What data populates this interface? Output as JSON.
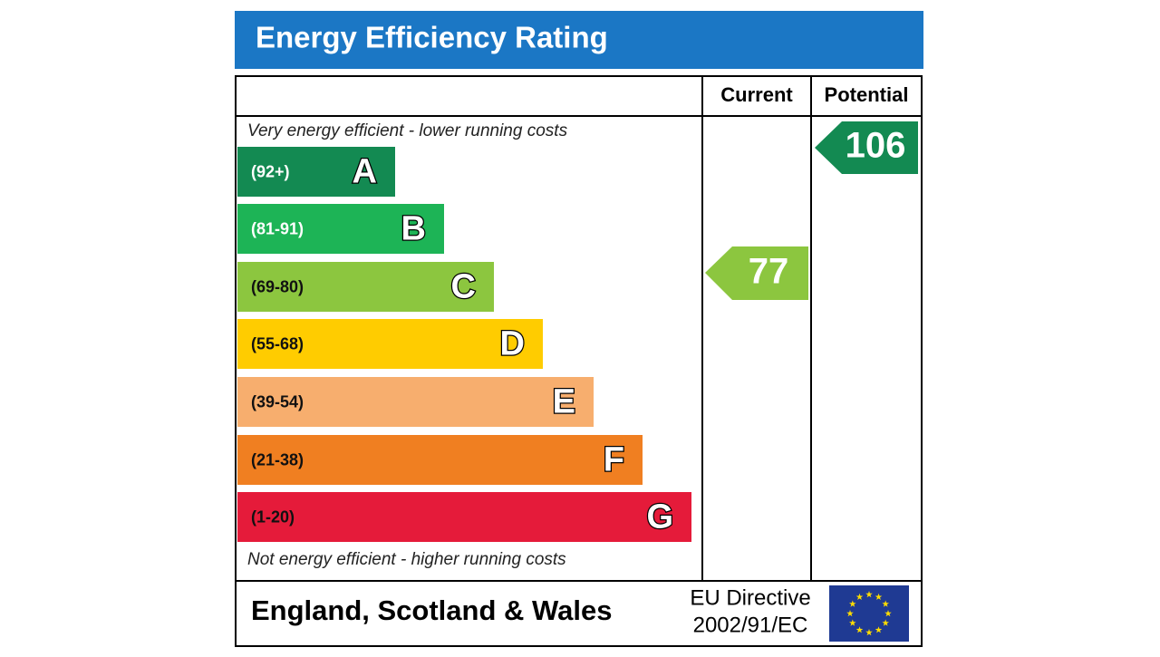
{
  "header": {
    "title": "Energy Efficiency Rating"
  },
  "columns": [
    "Current",
    "Potential"
  ],
  "top_note": "Very energy efficient - lower running costs",
  "bands": [
    {
      "range": "(92+)",
      "letter": "A",
      "color": "#138a52"
    },
    {
      "range": "(81-91)",
      "letter": "B",
      "color": "#1db456"
    },
    {
      "range": "(69-80)",
      "letter": "C",
      "color": "#8cc63f"
    },
    {
      "range": "(55-68)",
      "letter": "D",
      "color": "#ffcc00"
    },
    {
      "range": "(39-54)",
      "letter": "E",
      "color": "#f7ae6e"
    },
    {
      "range": "(21-38)",
      "letter": "F",
      "color": "#f07f21"
    },
    {
      "range": "(1-20)",
      "letter": "G",
      "color": "#e51b3a"
    }
  ],
  "bottom_note": "Not energy efficient - higher running costs",
  "current": {
    "value": 77
  },
  "potential": {
    "value": 106
  },
  "footer": {
    "region": "England, Scotland & Wales",
    "directive": [
      "EU Directive",
      "2002/91/EC"
    ]
  }
}
